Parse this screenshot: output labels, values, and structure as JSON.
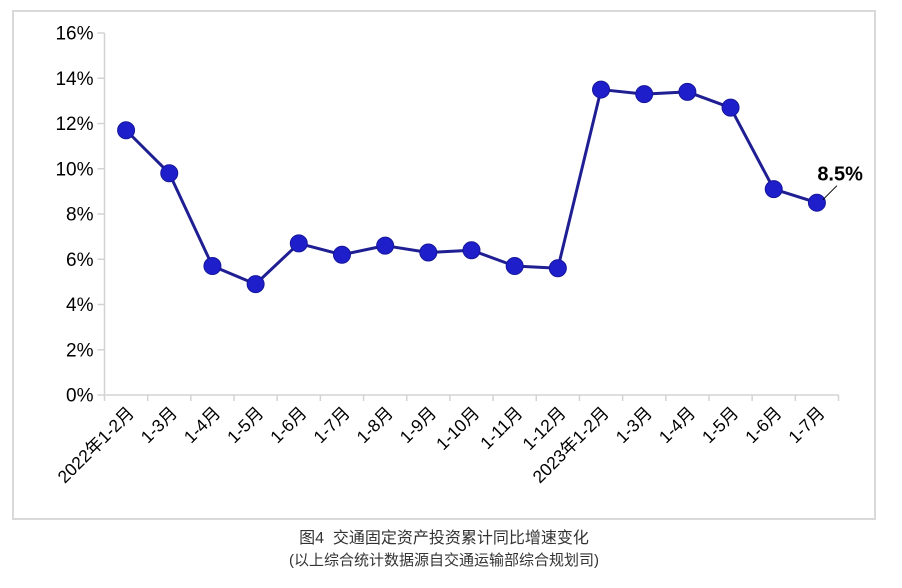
{
  "chart_data": {
    "type": "line",
    "title": "图4  交通固定资产投资累计同比增速变化",
    "source_note": "(以上综合统计数据源自交通运输部综合规划司)",
    "categories": [
      "2022年1-2月",
      "1-3月",
      "1-4月",
      "1-5月",
      "1-6月",
      "1-7月",
      "1-8月",
      "1-9月",
      "1-10月",
      "1-11月",
      "1-12月",
      "2023年1-2月",
      "1-3月",
      "1-4月",
      "1-5月",
      "1-6月",
      "1-7月"
    ],
    "series": [
      {
        "name": "交通固定资产投资累计同比增速",
        "values": [
          11.7,
          9.8,
          5.7,
          4.9,
          6.7,
          6.2,
          6.6,
          6.3,
          6.4,
          5.7,
          5.6,
          13.5,
          13.3,
          13.4,
          12.7,
          9.1,
          8.5
        ]
      }
    ],
    "ylim": [
      0,
      16
    ],
    "ytick_step": 2,
    "ytick_suffix": "%",
    "grid": false,
    "legend_position": "none",
    "annotation": {
      "text": "8.5%",
      "point_index": 16
    },
    "colors": {
      "line": "#1f1f93",
      "marker_fill": "#1e1ecb",
      "marker_stroke": "#16169a",
      "axis": "#d3d3d3",
      "tick_label": "#000000",
      "annotation_text": "#000000",
      "caption_text": "#333333",
      "frame_border": "#d9d9d9"
    }
  }
}
